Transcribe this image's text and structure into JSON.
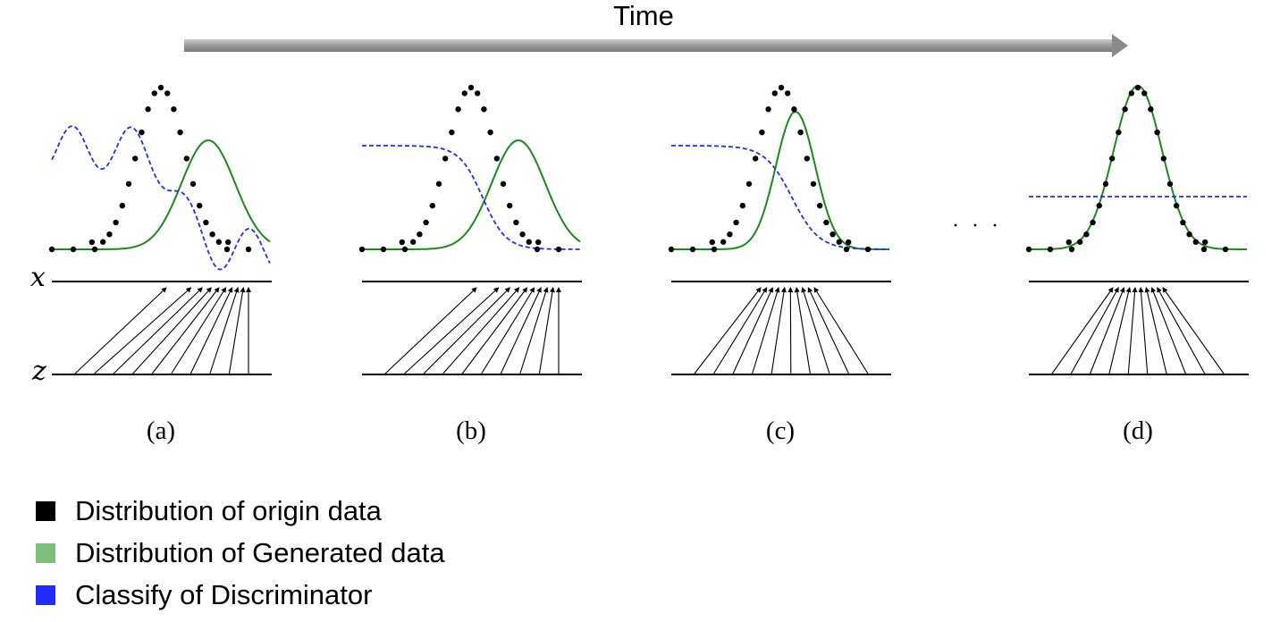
{
  "time_label": "Time",
  "panels": [
    {
      "id": "a",
      "label": "(a)",
      "discriminator": "wavy"
    },
    {
      "id": "b",
      "label": "(b)",
      "discriminator": "sigmoid"
    },
    {
      "id": "c",
      "label": "(c)",
      "discriminator": "sigmoid-close"
    },
    {
      "id": "d",
      "label": "(d)",
      "discriminator": "flat"
    }
  ],
  "axis_labels": {
    "x": "x",
    "z": "z"
  },
  "ellipsis": "· · ·",
  "legend": [
    {
      "label": "Distribution of origin data",
      "color": "#000000"
    },
    {
      "label": "Distribution of Generated data",
      "color": "#7cc07c"
    },
    {
      "label": "Classify of Discriminator",
      "color": "#1f2bff"
    }
  ],
  "colors": {
    "data_dots": "#000000",
    "generated_curve": "#1a8a1a",
    "discriminator": "#1f2bff",
    "time_arrow": "#9a9a9a"
  }
}
